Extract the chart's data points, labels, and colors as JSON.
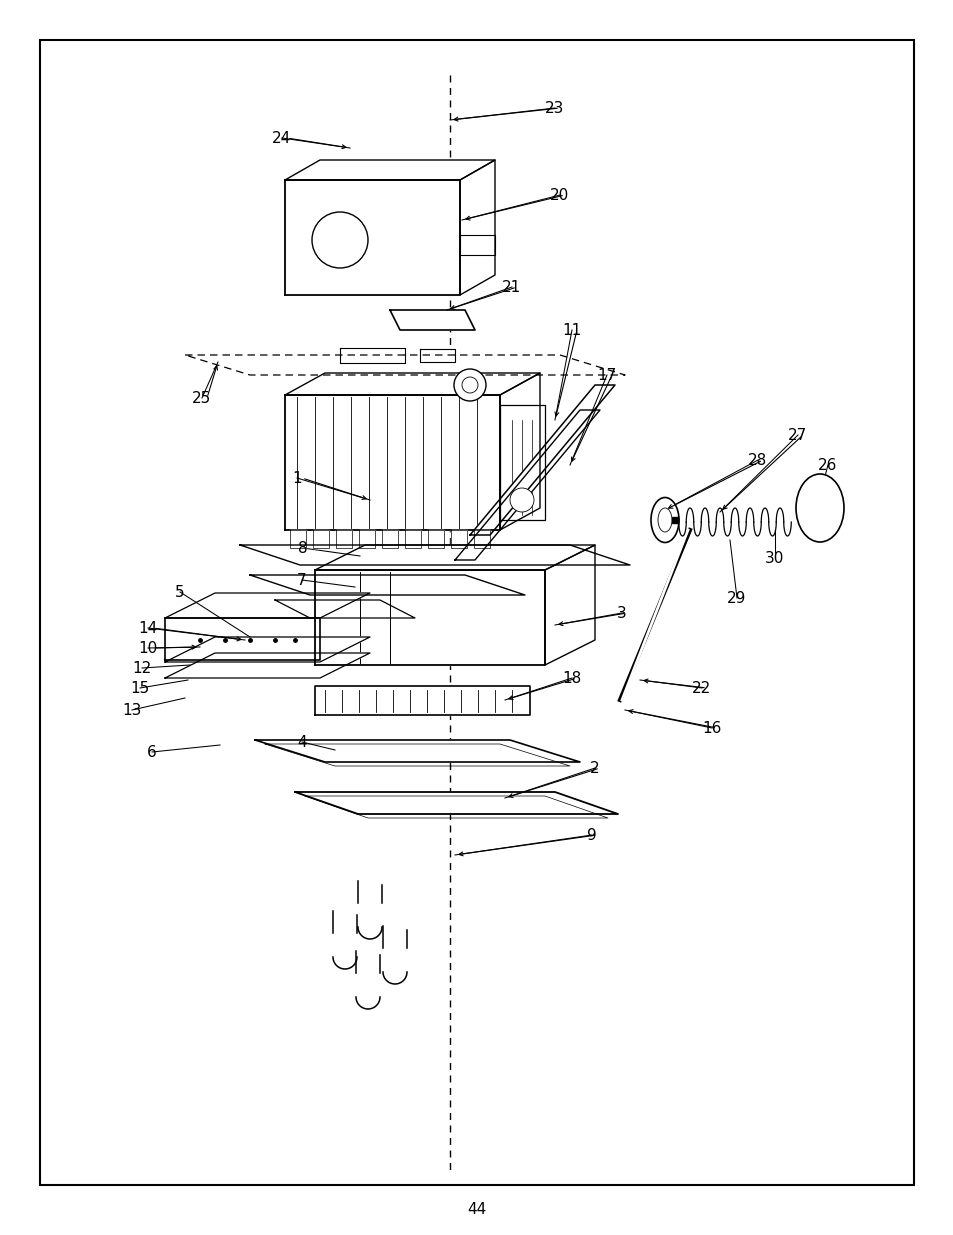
{
  "page_num": "44",
  "bg_color": "#ffffff",
  "line_color": "#000000",
  "label_fontsize": 11
}
